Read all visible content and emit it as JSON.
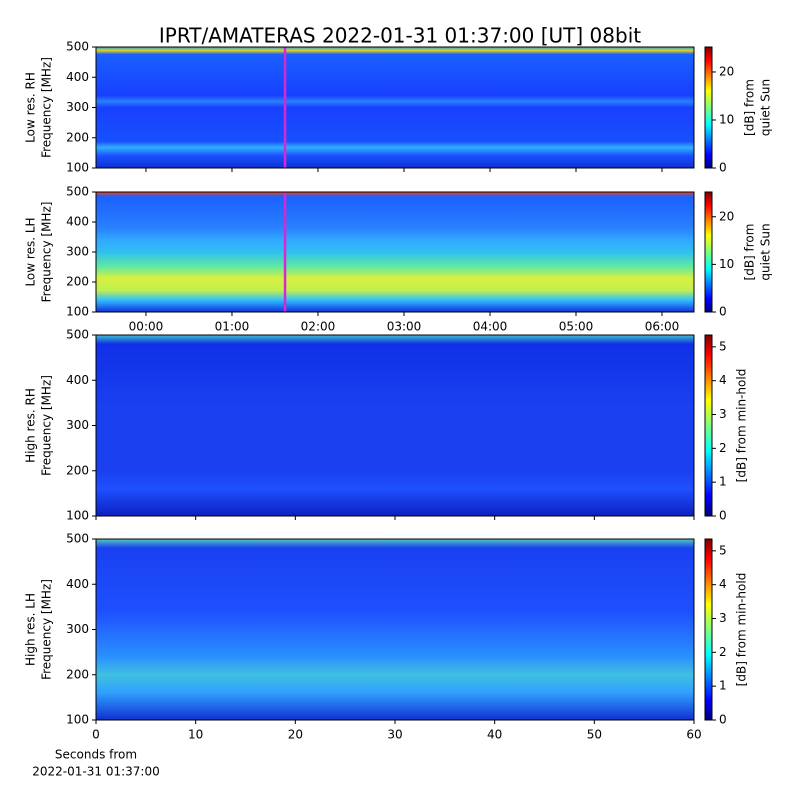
{
  "title": "IPRT/AMATERAS 2022-01-31 01:37:00 [UT]   08bit",
  "chart_data": [
    {
      "type": "spectrogram",
      "ylabel": [
        "Low res. RH",
        "Frequency [MHz]"
      ],
      "ylim": [
        100,
        500
      ],
      "yticks": [
        100,
        200,
        300,
        400,
        500
      ],
      "xlim": [
        -0.581,
        6.372
      ],
      "sharex": 1,
      "cursor_x": 1.617,
      "cursor_color": "#d42ad4",
      "colorbar": {
        "label": [
          "[dB] from",
          "quiet Sun"
        ],
        "lim": [
          0,
          25.2
        ],
        "ticks": [
          0,
          10,
          20
        ]
      }
    },
    {
      "type": "spectrogram",
      "ylabel": [
        "Low res. LH",
        "Frequency [MHz]"
      ],
      "ylim": [
        100,
        500
      ],
      "yticks": [
        100,
        200,
        300,
        400,
        500
      ],
      "xlim": [
        -0.581,
        6.372
      ],
      "xticks": [
        {
          "value": 0,
          "label": "00:00"
        },
        {
          "value": 1,
          "label": "01:00"
        },
        {
          "value": 2,
          "label": "02:00"
        },
        {
          "value": 3,
          "label": "03:00"
        },
        {
          "value": 4,
          "label": "04:00"
        },
        {
          "value": 5,
          "label": "05:00"
        },
        {
          "value": 6,
          "label": "06:00"
        }
      ],
      "cursor_x": 1.617,
      "cursor_color": "#d42ad4",
      "colorbar": {
        "label": [
          "[dB] from",
          "quiet Sun"
        ],
        "lim": [
          0,
          25.2
        ],
        "ticks": [
          0,
          10,
          20
        ]
      }
    },
    {
      "type": "spectrogram",
      "ylabel": [
        "High res. RH",
        "Frequency [MHz]"
      ],
      "ylim": [
        100,
        500
      ],
      "yticks": [
        100,
        200,
        300,
        400,
        500
      ],
      "xlim": [
        0,
        60
      ],
      "sharex": 3,
      "colorbar": {
        "label": [
          "[dB] from min-hold"
        ],
        "lim": [
          0,
          5.35
        ],
        "ticks": [
          0,
          1,
          2,
          3,
          4,
          5
        ]
      }
    },
    {
      "type": "spectrogram",
      "ylabel": [
        "High res. LH",
        "Frequency [MHz]"
      ],
      "ylim": [
        100,
        500
      ],
      "yticks": [
        100,
        200,
        300,
        400,
        500
      ],
      "xlim": [
        0,
        60
      ],
      "xticks": [
        0,
        10,
        20,
        30,
        40,
        50,
        60
      ],
      "xlabel": [
        "Seconds from",
        "2022-01-31 01:37:00"
      ],
      "colorbar": {
        "label": [
          "[dB] from min-hold"
        ],
        "lim": [
          0,
          5.35
        ],
        "ticks": [
          0,
          1,
          2,
          3,
          4,
          5
        ]
      }
    }
  ]
}
